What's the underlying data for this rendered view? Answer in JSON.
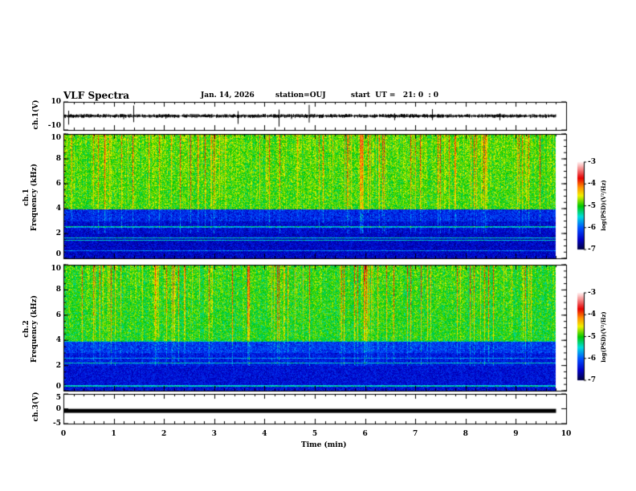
{
  "header": {
    "title": "VLF Spectra",
    "date": "Jan. 14, 2026",
    "station": "station=OUJ",
    "start": "start  UT =   21: 0  : 0"
  },
  "chart_data": [
    {
      "type": "line",
      "name": "ch1-waveform",
      "ylabel": "ch.1(V)",
      "ylim": [
        -10,
        10
      ],
      "yticks": [
        "10",
        "-10"
      ],
      "baseline": 0,
      "noise_amplitude": 1.5,
      "spike_amplitude": 8,
      "xlim": [
        0,
        10
      ],
      "data_end": 9.8
    },
    {
      "type": "heatmap",
      "name": "ch1-spectrogram",
      "ylabel": "ch.1\nFrequency (kHz)",
      "ylabel_line1": "ch.1",
      "ylabel_line2": "Frequency (kHz)",
      "ylim": [
        0,
        10
      ],
      "yticks": [
        "0",
        "2",
        "4",
        "6",
        "8",
        "10"
      ],
      "xlim": [
        0,
        10
      ],
      "data_end": 9.8,
      "description_values": {
        "low_band_kHz": [
          0,
          4
        ],
        "low_band_log_psd": -6.5,
        "high_band_log_psd": -5.0,
        "burst_log_psd": -4.0
      },
      "colorbar": {
        "label": "log(PSD)(V²/Hz)",
        "range": [
          -7,
          -3
        ],
        "ticks": [
          "-3",
          "-4",
          "-5",
          "-6",
          "-7"
        ]
      }
    },
    {
      "type": "heatmap",
      "name": "ch2-spectrogram",
      "ylabel_line1": "ch.2",
      "ylabel_line2": "Frequency (kHz)",
      "ylim": [
        0,
        10
      ],
      "yticks": [
        "0",
        "2",
        "4",
        "6",
        "8",
        "10"
      ],
      "xlim": [
        0,
        10
      ],
      "data_end": 9.8,
      "description_values": {
        "low_band_kHz": [
          0,
          4
        ],
        "low_band_log_psd": -6.4,
        "high_band_log_psd": -5.1,
        "burst_log_psd": -4.2
      },
      "colorbar": {
        "label": "log(PSD)(V²/Hz)",
        "range": [
          -7,
          -3
        ],
        "ticks": [
          "-3",
          "-4",
          "-5",
          "-6",
          "-7"
        ]
      }
    },
    {
      "type": "line",
      "name": "ch3-waveform",
      "ylabel": "ch.3(V)",
      "ylim": [
        -5,
        5
      ],
      "yticks": [
        "5",
        "0",
        "-5"
      ],
      "baseline": -0.7,
      "xlim": [
        0,
        10
      ],
      "data_end": 9.8
    },
    {
      "xlabel": "Time (min)",
      "xticks": [
        "0",
        "1",
        "2",
        "3",
        "4",
        "5",
        "6",
        "7",
        "8",
        "9",
        "10"
      ]
    }
  ]
}
